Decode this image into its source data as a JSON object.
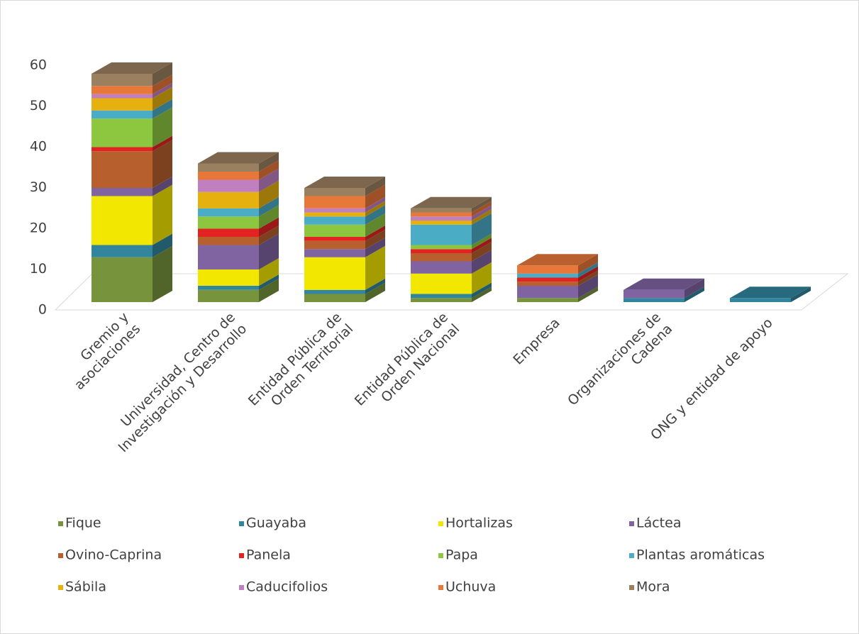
{
  "chart_data": {
    "type": "bar3d_stacked",
    "categories": [
      [
        "Gremio y",
        "asociaciones"
      ],
      [
        "Universidad, Centro de",
        "Investigación y Desarrollo"
      ],
      [
        "Entidad Pública de",
        "Orden Territorial"
      ],
      [
        "Entidad Pública de",
        "Orden Nacional"
      ],
      [
        "Empresa"
      ],
      [
        "Organizaciones de",
        "Cadena"
      ],
      [
        "ONG y entidad de apoyo"
      ]
    ],
    "series": [
      {
        "name": "Fique",
        "color": "#77933c",
        "values": [
          11,
          3,
          2,
          1,
          1,
          0,
          0
        ]
      },
      {
        "name": "Guayaba",
        "color": "#31859c",
        "values": [
          3,
          1,
          1,
          1,
          0,
          1,
          1
        ]
      },
      {
        "name": "Hortalizas",
        "color": "#f2e700",
        "values": [
          12,
          4,
          8,
          5,
          0,
          0,
          0
        ]
      },
      {
        "name": "Láctea",
        "color": "#8064a2",
        "values": [
          2,
          6,
          2,
          3,
          3,
          2,
          0
        ]
      },
      {
        "name": "Ovino-Caprina",
        "color": "#b7602e",
        "values": [
          9,
          2,
          2,
          2,
          1,
          0,
          0
        ]
      },
      {
        "name": "Panela",
        "color": "#e32322",
        "values": [
          1,
          2,
          1,
          1,
          1,
          0,
          0
        ]
      },
      {
        "name": "Papa",
        "color": "#8dc63f",
        "values": [
          7,
          3,
          3,
          1,
          0,
          0,
          0
        ]
      },
      {
        "name": "Plantas aromáticas",
        "color": "#4bacc6",
        "values": [
          2,
          2,
          2,
          5,
          1,
          0,
          0
        ]
      },
      {
        "name": "Sábila",
        "color": "#e6b00f",
        "values": [
          3,
          4,
          1,
          1,
          0,
          0,
          0
        ]
      },
      {
        "name": "Caducifolios",
        "color": "#c080c0",
        "values": [
          1,
          3,
          1,
          1,
          0,
          0,
          0
        ]
      },
      {
        "name": "Uchuva",
        "color": "#e8773a",
        "values": [
          2,
          2,
          3,
          1,
          2,
          0,
          0
        ]
      },
      {
        "name": "Mora",
        "color": "#9b8060",
        "values": [
          3,
          2,
          2,
          1,
          0,
          0,
          0
        ]
      }
    ],
    "ylim": [
      0,
      60
    ],
    "yticks": [
      0,
      10,
      20,
      30,
      40,
      50,
      60
    ]
  }
}
